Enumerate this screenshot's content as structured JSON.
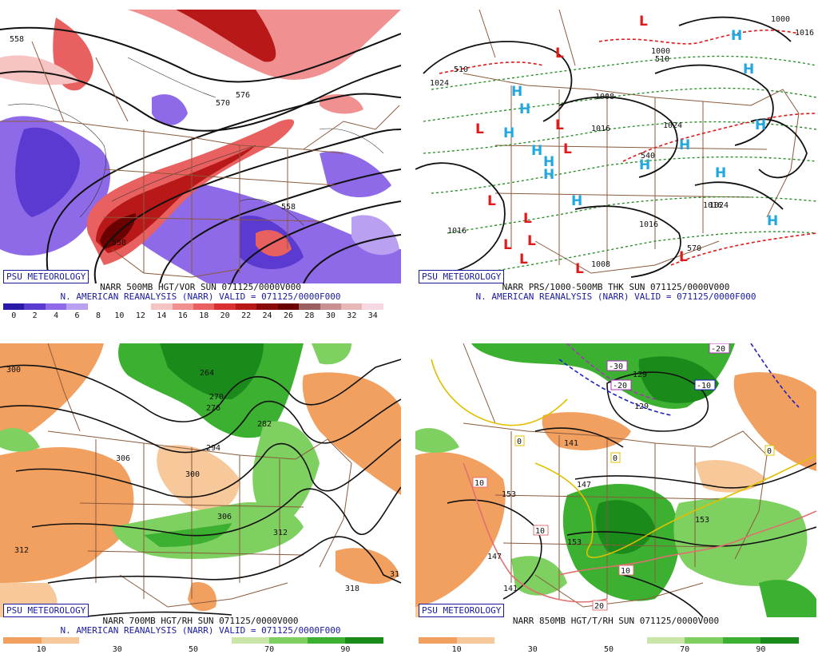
{
  "panels": [
    {
      "id": "p500",
      "badge": "PSU METEOROLOGY",
      "line1": "NARR 500MB HGT/VOR SUN 071125/0000V000",
      "line2": "N. AMERICAN REANALYSIS (NARR) VALID = 071125/0000F000",
      "colorbar": {
        "labels": [
          "0",
          "2",
          "4",
          "6",
          "8",
          "10",
          "12",
          "14",
          "16",
          "18",
          "20",
          "22",
          "24",
          "26",
          "28",
          "30",
          "32",
          "34"
        ],
        "colors": [
          "#2a1aa8",
          "#5a3ad0",
          "#8f6ae8",
          "#b9a0f0",
          "#ffffff",
          "#ffffff",
          "#ffffff",
          "#f7c4c4",
          "#f09090",
          "#e86060",
          "#d83030",
          "#b81818",
          "#8a0a0a",
          "#6a0000",
          "#9a6060",
          "#c89090",
          "#e8b8b8",
          "#f8d8e0"
        ]
      },
      "contour_labels": [
        "558",
        "570",
        "558",
        "576",
        "558"
      ]
    },
    {
      "id": "pprs",
      "badge": "PSU METEOROLOGY",
      "line1": "NARR PRS/1000-500MB THK SUN 071125/0000V000",
      "line2": "N. AMERICAN REANALYSIS (NARR) VALID = 071125/0000F000",
      "contour_labels": [
        "1024",
        "1016",
        "1008",
        "1016",
        "1024",
        "1016",
        "1016",
        "1008",
        "1000",
        "1016",
        "1024",
        "1000",
        "510",
        "510",
        "540",
        "570"
      ],
      "highs": 14,
      "lows": 13
    },
    {
      "id": "p700",
      "badge": "PSU METEOROLOGY",
      "line1": "NARR 700MB HGT/RH SUN 071125/0000V000",
      "line2": "N. AMERICAN REANALYSIS (NARR) VALID = 071125/0000F000",
      "colorbar": {
        "labels": [
          "10",
          "30",
          "50",
          "70",
          "90"
        ],
        "colors": [
          "#f2a060",
          "#f7c89a",
          "#ffffff",
          "#ffffff",
          "#ffffff",
          "#ffffff",
          "#c9e6a8",
          "#7ed060",
          "#3cb030",
          "#1a8a1a"
        ]
      },
      "contour_labels": [
        "300",
        "264",
        "270",
        "276",
        "282",
        "294",
        "306",
        "300",
        "306",
        "312",
        "312",
        "318",
        "31"
      ]
    },
    {
      "id": "p850",
      "badge": "PSU METEOROLOGY",
      "line1": "NARR 850MB HGT/T/RH SUN 071125/0000V000",
      "line2": "",
      "colorbar": {
        "labels": [
          "10",
          "30",
          "50",
          "70",
          "90"
        ],
        "colors": [
          "#f2a060",
          "#f7c89a",
          "#ffffff",
          "#ffffff",
          "#ffffff",
          "#ffffff",
          "#c9e6a8",
          "#7ed060",
          "#3cb030",
          "#1a8a1a"
        ]
      },
      "contour_labels": [
        "129",
        "129",
        "141",
        "147",
        "153",
        "153",
        "147",
        "153",
        "141"
      ],
      "temp_labels": [
        "-20",
        "-30",
        "-20",
        "-10",
        "0",
        "0",
        "0",
        "10",
        "10",
        "10",
        "20"
      ]
    }
  ]
}
